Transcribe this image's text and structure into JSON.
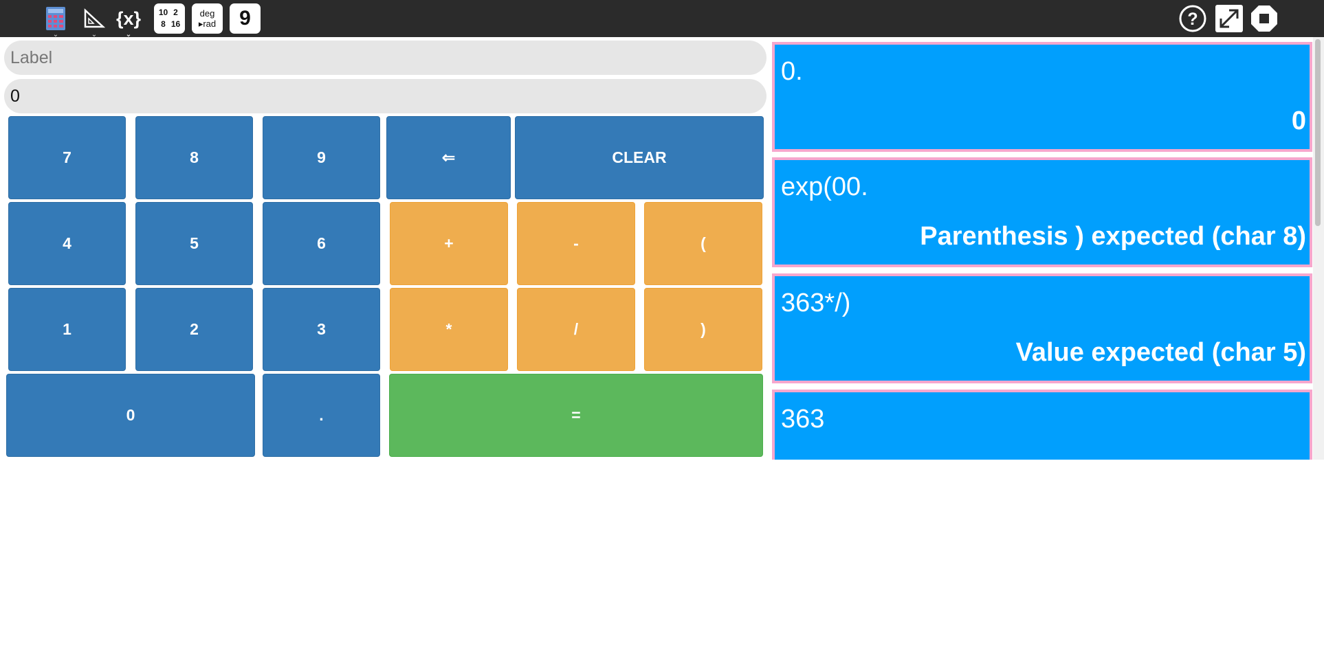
{
  "toolbar": {
    "icons": [
      "calculator-icon",
      "triangle-ruler-icon",
      "variable-icon",
      "number-base-icon",
      "angle-mode-icon",
      "precision-icon",
      "help-icon",
      "fullscreen-icon",
      "stop-icon"
    ],
    "variable_label": "{x}",
    "base_numbers": [
      "10",
      "2",
      "8",
      "16"
    ],
    "angle_top": "deg",
    "angle_bottom": "▸rad",
    "precision_value": "9"
  },
  "inputs": {
    "label_placeholder": "Label",
    "expression_value": "0"
  },
  "keypad": {
    "seven": "7",
    "eight": "8",
    "nine": "9",
    "backspace": "⇐",
    "clear": "CLEAR",
    "four": "4",
    "five": "5",
    "six": "6",
    "plus": "+",
    "minus": "-",
    "open_paren": "(",
    "one": "1",
    "two": "2",
    "three": "3",
    "multiply": "*",
    "divide": "/",
    "close_paren": ")",
    "zero": "0",
    "dot": ".",
    "equals": "="
  },
  "history": [
    {
      "expression": "0.",
      "result": "0"
    },
    {
      "expression": "exp(00.",
      "result": "Parenthesis ) expected (char 8)"
    },
    {
      "expression": "363*/)",
      "result": "Value expected (char 5)"
    },
    {
      "expression": "363",
      "result": ""
    }
  ],
  "colors": {
    "toolbar_bg": "#2b2b2b",
    "key_blue": "#347ab7",
    "key_orange": "#efad4e",
    "key_green": "#5cb85c",
    "history_bg": "#019ffd",
    "history_border": "#f6a7cd"
  }
}
